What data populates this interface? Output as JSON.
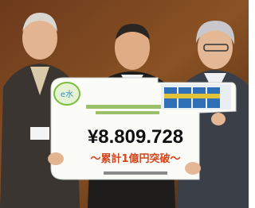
{
  "photo": {
    "board": {
      "amount": "¥8.809.728",
      "subtitle": "〜累計1億円突破〜"
    }
  }
}
